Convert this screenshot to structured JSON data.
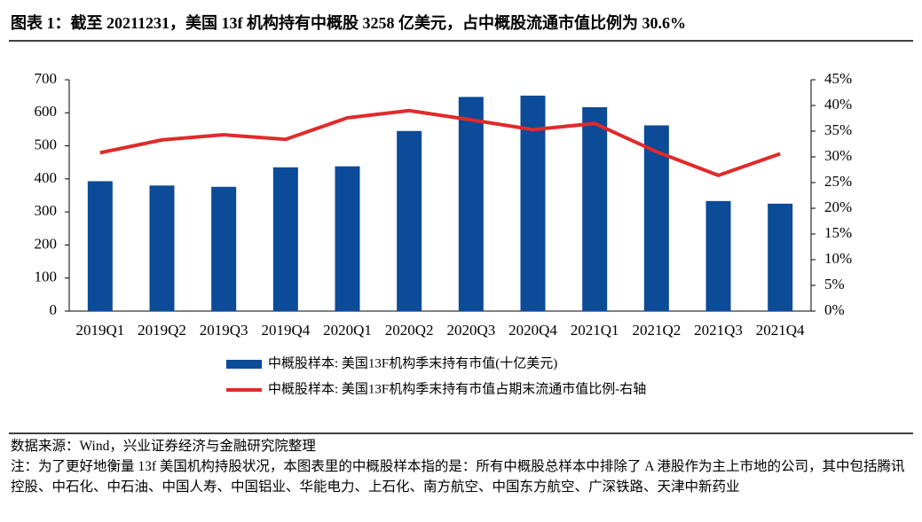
{
  "chart_data": {
    "type": "bar-line",
    "title": "图表 1：截至 20211231，美国 13f 机构持有中概股 3258 亿美元，占中概股流通市值比例为 30.6%",
    "categories": [
      "2019Q1",
      "2019Q2",
      "2019Q3",
      "2019Q4",
      "2020Q1",
      "2020Q2",
      "2020Q3",
      "2020Q4",
      "2021Q1",
      "2021Q2",
      "2021Q3",
      "2021Q4"
    ],
    "series": [
      {
        "name": "中概股样本: 美国13F机构季末持有市值(十亿美元)",
        "type": "bar",
        "color": "#0b4b98",
        "values": [
          393,
          380,
          376,
          435,
          438,
          545,
          648,
          652,
          617,
          562,
          333,
          325
        ]
      },
      {
        "name": "中概股样本: 美国13F机构季末持有市值占期末流通市值比例-右轴",
        "type": "line",
        "color": "#e12a2a",
        "axis": "y2",
        "values": [
          30.8,
          33.3,
          34.3,
          33.4,
          37.6,
          39.0,
          37.2,
          35.3,
          36.5,
          31.0,
          26.4,
          30.6
        ]
      }
    ],
    "ylim": [
      0,
      700
    ],
    "yticks": [
      0,
      100,
      200,
      300,
      400,
      500,
      600,
      700
    ],
    "y2lim": [
      0,
      45
    ],
    "y2ticks": [
      {
        "value": 0,
        "label": "0%"
      },
      {
        "value": 5,
        "label": "5%"
      },
      {
        "value": 10,
        "label": "10%"
      },
      {
        "value": 15,
        "label": "15%"
      },
      {
        "value": 20,
        "label": "20%"
      },
      {
        "value": 25,
        "label": "25%"
      },
      {
        "value": 30,
        "label": "30%"
      },
      {
        "value": 35,
        "label": "35%"
      },
      {
        "value": 40,
        "label": "40%"
      },
      {
        "value": 45,
        "label": "45%"
      }
    ]
  },
  "footer": {
    "source": "数据来源：Wind，兴业证券经济与金融研究院整理",
    "note": "注：为了更好地衡量 13f 美国机构持股状况，本图表里的中概股样本指的是：所有中概股总样本中排除了 A 港股作为主上市地的公司，其中包括腾讯控股、中石化、中石油、中国人寿、中国铝业、华能电力、上石化、南方航空、中国东方航空、广深铁路、天津中新药业"
  }
}
